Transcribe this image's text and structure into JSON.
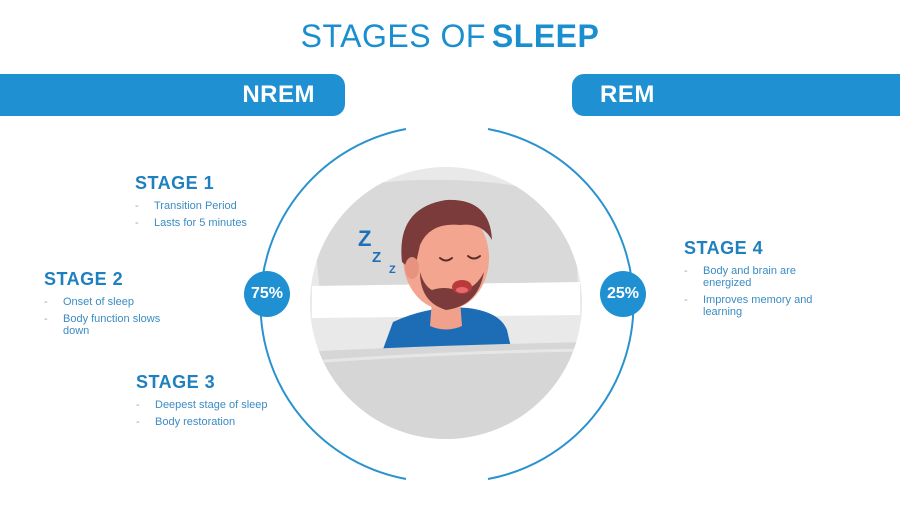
{
  "title": {
    "light": "STAGES OF",
    "bold": "SLEEP"
  },
  "banners": {
    "nrem": "NREM",
    "rem": "REM"
  },
  "badges": {
    "nrem_percent": "75%",
    "rem_percent": "25%"
  },
  "stages": [
    {
      "title": "STAGE 1",
      "items": [
        "Transition Period",
        "Lasts for 5 minutes"
      ]
    },
    {
      "title": "STAGE 2",
      "items": [
        "Onset of sleep",
        "Body function slows down"
      ]
    },
    {
      "title": "STAGE 3",
      "items": [
        "Deepest stage of sleep",
        "Body restoration"
      ]
    },
    {
      "title": "STAGE 4",
      "items": [
        "Body and brain are energized",
        "Improves memory and learning"
      ]
    }
  ],
  "illustration": {
    "snore_letters": [
      "Z",
      "Z",
      "Z"
    ]
  },
  "colors": {
    "accent": "#1f90d2",
    "text": "#1f80bf",
    "skin": "#f3a58f",
    "hair": "#7b3b3a",
    "shirt": "#1c6db5"
  }
}
